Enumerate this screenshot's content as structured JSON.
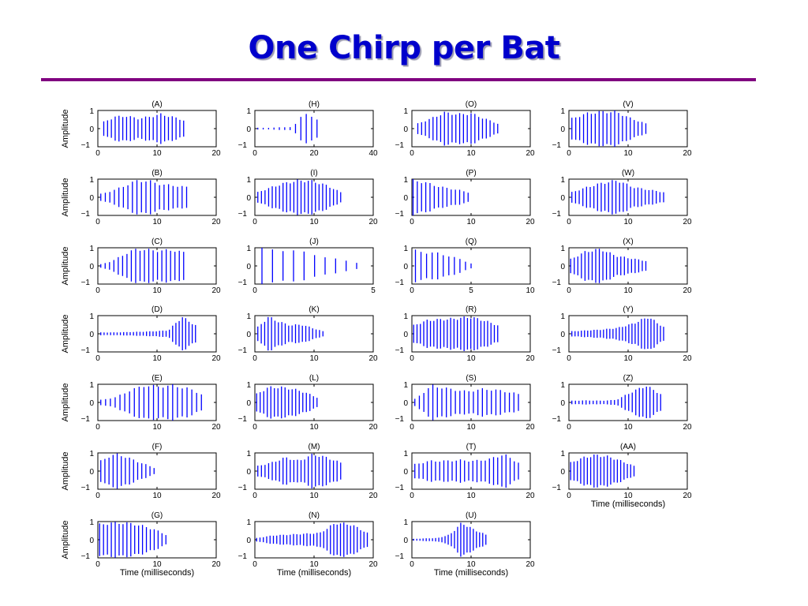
{
  "title": "One Chirp per Bat",
  "colors": {
    "title": "#0000cc",
    "rule": "#800080",
    "trace": "#0000ff",
    "axes": "#000000"
  },
  "ylabel": "Amplitude",
  "xlabel": "Time (milliseconds)",
  "chart_data": [
    {
      "type": "line",
      "label": "(A)",
      "col": 0,
      "row": 0,
      "xlim": [
        0,
        20
      ],
      "xticks": [
        0,
        10,
        20
      ],
      "ylim": [
        -1,
        1
      ],
      "yticks": [
        -1,
        0,
        1
      ],
      "pulses": {
        "start": 1.0,
        "end": 14.5,
        "count": 22,
        "envelope": [
          0.4,
          0.7,
          0.75,
          0.6,
          0.7,
          0.85,
          0.7,
          0.5
        ]
      }
    },
    {
      "type": "line",
      "label": "(B)",
      "col": 0,
      "row": 1,
      "xlim": [
        0,
        20
      ],
      "xticks": [
        0,
        10,
        20
      ],
      "ylim": [
        -1,
        1
      ],
      "yticks": [
        -1,
        0,
        1
      ],
      "pulses": {
        "start": 0.5,
        "end": 15.0,
        "count": 20,
        "envelope": [
          0.2,
          0.4,
          0.7,
          1.0,
          0.95,
          0.75,
          0.7,
          0.6
        ]
      }
    },
    {
      "type": "line",
      "label": "(C)",
      "col": 0,
      "row": 2,
      "xlim": [
        0,
        20
      ],
      "xticks": [
        0,
        10,
        20
      ],
      "ylim": [
        -1,
        1
      ],
      "yticks": [
        -1,
        0,
        1
      ],
      "pulses": {
        "start": 0.5,
        "end": 14.5,
        "count": 20,
        "envelope": [
          0.1,
          0.3,
          0.7,
          1.0,
          0.95,
          0.9,
          0.95,
          0.8
        ]
      }
    },
    {
      "type": "line",
      "label": "(D)",
      "col": 0,
      "row": 3,
      "xlim": [
        0,
        20
      ],
      "xticks": [
        0,
        10,
        20
      ],
      "ylim": [
        -1,
        1
      ],
      "yticks": [
        -1,
        0,
        1
      ],
      "pulses": {
        "start": 0.5,
        "end": 16.5,
        "count": 30,
        "envelope": [
          0.08,
          0.08,
          0.1,
          0.12,
          0.15,
          0.2,
          1.0,
          0.5
        ]
      }
    },
    {
      "type": "line",
      "label": "(E)",
      "col": 0,
      "row": 4,
      "xlim": [
        0,
        20
      ],
      "xticks": [
        0,
        10,
        20
      ],
      "ylim": [
        -1,
        1
      ],
      "yticks": [
        -1,
        0,
        1
      ],
      "pulses": {
        "start": 0.5,
        "end": 17.5,
        "count": 22,
        "envelope": [
          0.15,
          0.3,
          0.7,
          1.0,
          0.95,
          1.0,
          0.85,
          0.5
        ]
      }
    },
    {
      "type": "line",
      "label": "(F)",
      "col": 0,
      "row": 5,
      "xlim": [
        0,
        20
      ],
      "xticks": [
        0,
        10,
        20
      ],
      "ylim": [
        -1,
        1
      ],
      "yticks": [
        -1,
        0,
        1
      ],
      "pulses": {
        "start": 0.5,
        "end": 9.5,
        "count": 14,
        "envelope": [
          0.6,
          0.9,
          1.0,
          0.8,
          0.6,
          0.4,
          0.2
        ]
      }
    },
    {
      "type": "line",
      "label": "(G)",
      "col": 0,
      "row": 6,
      "xlim": [
        0,
        20
      ],
      "xticks": [
        0,
        10,
        20
      ],
      "ylim": [
        -1,
        1
      ],
      "yticks": [
        -1,
        0,
        1
      ],
      "pulses": {
        "start": 0.3,
        "end": 11.5,
        "count": 18,
        "envelope": [
          0.9,
          1.0,
          1.0,
          0.95,
          0.8,
          0.6,
          0.3
        ]
      }
    },
    {
      "type": "line",
      "label": "(H)",
      "col": 1,
      "row": 0,
      "xlim": [
        0,
        40
      ],
      "xticks": [
        0,
        20,
        40
      ],
      "ylim": [
        -1,
        1
      ],
      "yticks": [
        -1,
        0,
        1
      ],
      "pulses": {
        "start": 1.0,
        "end": 21.0,
        "count": 12,
        "envelope": [
          0.05,
          0.05,
          0.08,
          0.1,
          1.0,
          0.5
        ]
      }
    },
    {
      "type": "line",
      "label": "(I)",
      "col": 1,
      "row": 1,
      "xlim": [
        0,
        20
      ],
      "xticks": [
        0,
        10,
        20
      ],
      "ylim": [
        -1,
        1
      ],
      "yticks": [
        -1,
        0,
        1
      ],
      "pulses": {
        "start": 0.5,
        "end": 14.5,
        "count": 24,
        "envelope": [
          0.3,
          0.6,
          0.85,
          1.0,
          0.95,
          0.7,
          0.3
        ]
      }
    },
    {
      "type": "line",
      "label": "(J)",
      "col": 1,
      "row": 2,
      "xlim": [
        0,
        5
      ],
      "xticks": [
        0,
        5
      ],
      "ylim": [
        -1,
        1
      ],
      "yticks": [
        -1,
        0,
        1
      ],
      "pulses": {
        "start": 0.3,
        "end": 4.3,
        "count": 10,
        "envelope": [
          1.0,
          1.0,
          0.9,
          0.75,
          0.55,
          0.35,
          0.2
        ]
      }
    },
    {
      "type": "line",
      "label": "(K)",
      "col": 1,
      "row": 3,
      "xlim": [
        0,
        20
      ],
      "xticks": [
        0,
        10,
        20
      ],
      "ylim": [
        -1,
        1
      ],
      "yticks": [
        -1,
        0,
        1
      ],
      "pulses": {
        "start": 0.5,
        "end": 11.5,
        "count": 20,
        "envelope": [
          0.4,
          1.0,
          0.7,
          0.5,
          0.55,
          0.35,
          0.15
        ]
      }
    },
    {
      "type": "line",
      "label": "(L)",
      "col": 1,
      "row": 4,
      "xlim": [
        0,
        20
      ],
      "xticks": [
        0,
        10,
        20
      ],
      "ylim": [
        -1,
        1
      ],
      "yticks": [
        -1,
        0,
        1
      ],
      "pulses": {
        "start": 0.3,
        "end": 10.5,
        "count": 18,
        "envelope": [
          0.5,
          0.9,
          0.9,
          0.8,
          0.6,
          0.3
        ]
      }
    },
    {
      "type": "line",
      "label": "(M)",
      "col": 1,
      "row": 5,
      "xlim": [
        0,
        20
      ],
      "xticks": [
        0,
        10,
        20
      ],
      "ylim": [
        -1,
        1
      ],
      "yticks": [
        -1,
        0,
        1
      ],
      "pulses": {
        "start": 0.5,
        "end": 14.5,
        "count": 24,
        "envelope": [
          0.3,
          0.5,
          0.8,
          0.6,
          1.0,
          0.8,
          0.5
        ]
      }
    },
    {
      "type": "line",
      "label": "(N)",
      "col": 1,
      "row": 6,
      "xlim": [
        0,
        20
      ],
      "xticks": [
        0,
        10,
        20
      ],
      "ylim": [
        -1,
        1
      ],
      "yticks": [
        -1,
        0,
        1
      ],
      "pulses": {
        "start": 0.3,
        "end": 19.0,
        "count": 34,
        "envelope": [
          0.1,
          0.25,
          0.3,
          0.35,
          0.4,
          1.0,
          0.9,
          0.4
        ]
      }
    },
    {
      "type": "line",
      "label": "(O)",
      "col": 2,
      "row": 0,
      "xlim": [
        0,
        20
      ],
      "xticks": [
        0,
        10,
        20
      ],
      "ylim": [
        -1,
        1
      ],
      "yticks": [
        -1,
        0,
        1
      ],
      "pulses": {
        "start": 1.0,
        "end": 14.5,
        "count": 22,
        "envelope": [
          0.3,
          0.6,
          0.95,
          0.85,
          0.9,
          0.6,
          0.3
        ]
      }
    },
    {
      "type": "line",
      "label": "(P)",
      "col": 2,
      "row": 1,
      "xlim": [
        0,
        20
      ],
      "xticks": [
        0,
        10,
        20
      ],
      "ylim": [
        -1,
        1
      ],
      "yticks": [
        -1,
        0,
        1
      ],
      "pulses": {
        "start": 0.2,
        "end": 9.5,
        "count": 14,
        "envelope": [
          1.0,
          0.9,
          0.7,
          0.55,
          0.45,
          0.3
        ]
      }
    },
    {
      "type": "line",
      "label": "(Q)",
      "col": 2,
      "row": 2,
      "xlim": [
        0,
        10
      ],
      "xticks": [
        0,
        5,
        10
      ],
      "ylim": [
        -1,
        1
      ],
      "yticks": [
        -1,
        0,
        1
      ],
      "pulses": {
        "start": 0.3,
        "end": 5.0,
        "count": 11,
        "envelope": [
          0.9,
          0.8,
          0.75,
          0.6,
          0.4,
          0.15
        ]
      }
    },
    {
      "type": "line",
      "label": "(R)",
      "col": 2,
      "row": 3,
      "xlim": [
        0,
        20
      ],
      "xticks": [
        0,
        10,
        20
      ],
      "ylim": [
        -1,
        1
      ],
      "yticks": [
        -1,
        0,
        1
      ],
      "pulses": {
        "start": 0.3,
        "end": 14.5,
        "count": 26,
        "envelope": [
          0.5,
          0.8,
          0.85,
          0.9,
          1.0,
          0.8,
          0.5
        ]
      }
    },
    {
      "type": "line",
      "label": "(S)",
      "col": 2,
      "row": 4,
      "xlim": [
        0,
        20
      ],
      "xticks": [
        0,
        10,
        20
      ],
      "ylim": [
        -1,
        1
      ],
      "yticks": [
        -1,
        0,
        1
      ],
      "pulses": {
        "start": 0.5,
        "end": 18.0,
        "count": 24,
        "envelope": [
          0.2,
          1.0,
          0.8,
          0.65,
          0.8,
          0.7,
          0.5
        ]
      }
    },
    {
      "type": "line",
      "label": "(T)",
      "col": 2,
      "row": 5,
      "xlim": [
        0,
        20
      ],
      "xticks": [
        0,
        10,
        20
      ],
      "ylim": [
        -1,
        1
      ],
      "yticks": [
        -1,
        0,
        1
      ],
      "pulses": {
        "start": 0.5,
        "end": 18.0,
        "count": 26,
        "envelope": [
          0.4,
          0.6,
          0.6,
          0.65,
          0.6,
          0.7,
          1.0,
          0.5
        ]
      }
    },
    {
      "type": "line",
      "label": "(U)",
      "col": 2,
      "row": 6,
      "xlim": [
        0,
        20
      ],
      "xticks": [
        0,
        10,
        20
      ],
      "ylim": [
        -1,
        1
      ],
      "yticks": [
        -1,
        0,
        1
      ],
      "pulses": {
        "start": 0.3,
        "end": 12.5,
        "count": 24,
        "envelope": [
          0.05,
          0.08,
          0.1,
          0.3,
          1.0,
          0.6,
          0.3
        ]
      }
    },
    {
      "type": "line",
      "label": "(V)",
      "col": 3,
      "row": 0,
      "xlim": [
        0,
        20
      ],
      "xticks": [
        0,
        10,
        20
      ],
      "ylim": [
        -1,
        1
      ],
      "yticks": [
        -1,
        0,
        1
      ],
      "pulses": {
        "start": 0.5,
        "end": 13.0,
        "count": 20,
        "envelope": [
          0.6,
          0.9,
          1.0,
          1.0,
          0.6,
          0.3
        ]
      }
    },
    {
      "type": "line",
      "label": "(W)",
      "col": 3,
      "row": 1,
      "xlim": [
        0,
        20
      ],
      "xticks": [
        0,
        10,
        20
      ],
      "ylim": [
        -1,
        1
      ],
      "yticks": [
        -1,
        0,
        1
      ],
      "pulses": {
        "start": 0.5,
        "end": 16.0,
        "count": 26,
        "envelope": [
          0.3,
          0.6,
          0.85,
          1.0,
          0.6,
          0.45,
          0.3
        ]
      }
    },
    {
      "type": "line",
      "label": "(X)",
      "col": 3,
      "row": 2,
      "xlim": [
        0,
        20
      ],
      "xticks": [
        0,
        10,
        20
      ],
      "ylim": [
        -1,
        1
      ],
      "yticks": [
        -1,
        0,
        1
      ],
      "pulses": {
        "start": 0.3,
        "end": 13.0,
        "count": 22,
        "envelope": [
          0.4,
          0.85,
          1.0,
          0.6,
          0.45,
          0.3
        ]
      }
    },
    {
      "type": "line",
      "label": "(Y)",
      "col": 3,
      "row": 3,
      "xlim": [
        0,
        20
      ],
      "xticks": [
        0,
        10,
        20
      ],
      "ylim": [
        -1,
        1
      ],
      "yticks": [
        -1,
        0,
        1
      ],
      "pulses": {
        "start": 0.5,
        "end": 16.0,
        "count": 30,
        "envelope": [
          0.15,
          0.2,
          0.25,
          0.35,
          0.6,
          1.0,
          0.4
        ]
      }
    },
    {
      "type": "line",
      "label": "(Z)",
      "col": 3,
      "row": 4,
      "xlim": [
        0,
        20
      ],
      "xticks": [
        0,
        10,
        20
      ],
      "ylim": [
        -1,
        1
      ],
      "yticks": [
        -1,
        0,
        1
      ],
      "pulses": {
        "start": 0.5,
        "end": 15.5,
        "count": 26,
        "envelope": [
          0.1,
          0.12,
          0.1,
          0.15,
          0.6,
          1.0,
          0.5
        ]
      }
    },
    {
      "type": "line",
      "label": "(AA)",
      "col": 3,
      "row": 5,
      "xlim": [
        0,
        20
      ],
      "xticks": [
        0,
        10,
        20
      ],
      "ylim": [
        -1,
        1
      ],
      "yticks": [
        -1,
        0,
        1
      ],
      "pulses": {
        "start": 0.3,
        "end": 11.0,
        "count": 20,
        "envelope": [
          0.5,
          0.8,
          0.95,
          0.85,
          0.6,
          0.3
        ]
      }
    }
  ]
}
